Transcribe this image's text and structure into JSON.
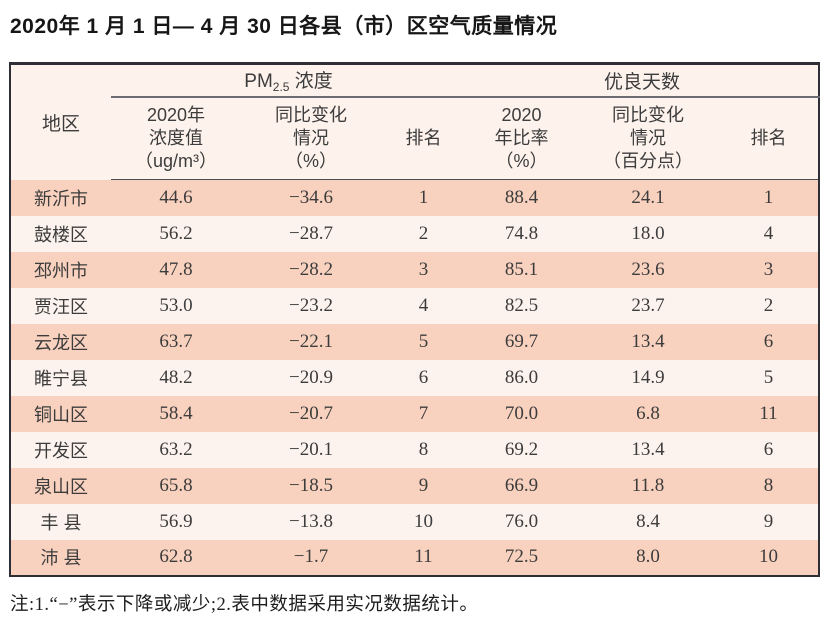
{
  "page": {
    "title": "2020年 1 月 1 日— 4 月 30 日各县（市）区空气质量情况",
    "footnote": "注:1.“−”表示下降或减少;2.表中数据采用实况数据统计。"
  },
  "colors": {
    "row_odd_bg": "#f9d2bf",
    "row_even_bg": "#fdf3ee",
    "header_bg": "#fdf2ec",
    "border_outer": "#2e2e36",
    "border_inner": "#4c4c54",
    "text": "#3c3c3c"
  },
  "table": {
    "header": {
      "region": "地区",
      "pm25_group_prefix": "PM",
      "pm25_group_sub": "2.5",
      "pm25_group_suffix": " 浓度",
      "good_days_group": "优良天数",
      "pm25_value": "2020年\n浓度值\n（ug/m³）",
      "pm25_change": "同比变化\n情况\n（%）",
      "pm25_rank": "排名",
      "good_rate": "2020\n年比率\n（%）",
      "good_change": "同比变化\n情况\n（百分点）",
      "good_rank": "排名"
    },
    "rows": [
      {
        "region": "新沂市",
        "pm25_value": "44.6",
        "pm25_change": "−34.6",
        "pm25_rank": "1",
        "good_rate": "88.4",
        "good_change": "24.1",
        "good_rank": "1"
      },
      {
        "region": "鼓楼区",
        "pm25_value": "56.2",
        "pm25_change": "−28.7",
        "pm25_rank": "2",
        "good_rate": "74.8",
        "good_change": "18.0",
        "good_rank": "4"
      },
      {
        "region": "邳州市",
        "pm25_value": "47.8",
        "pm25_change": "−28.2",
        "pm25_rank": "3",
        "good_rate": "85.1",
        "good_change": "23.6",
        "good_rank": "3"
      },
      {
        "region": "贾汪区",
        "pm25_value": "53.0",
        "pm25_change": "−23.2",
        "pm25_rank": "4",
        "good_rate": "82.5",
        "good_change": "23.7",
        "good_rank": "2"
      },
      {
        "region": "云龙区",
        "pm25_value": "63.7",
        "pm25_change": "−22.1",
        "pm25_rank": "5",
        "good_rate": "69.7",
        "good_change": "13.4",
        "good_rank": "6"
      },
      {
        "region": "睢宁县",
        "pm25_value": "48.2",
        "pm25_change": "−20.9",
        "pm25_rank": "6",
        "good_rate": "86.0",
        "good_change": "14.9",
        "good_rank": "5"
      },
      {
        "region": "铜山区",
        "pm25_value": "58.4",
        "pm25_change": "−20.7",
        "pm25_rank": "7",
        "good_rate": "70.0",
        "good_change": "6.8",
        "good_rank": "11"
      },
      {
        "region": "开发区",
        "pm25_value": "63.2",
        "pm25_change": "−20.1",
        "pm25_rank": "8",
        "good_rate": "69.2",
        "good_change": "13.4",
        "good_rank": "6"
      },
      {
        "region": "泉山区",
        "pm25_value": "65.8",
        "pm25_change": "−18.5",
        "pm25_rank": "9",
        "good_rate": "66.9",
        "good_change": "11.8",
        "good_rank": "8"
      },
      {
        "region": "丰 县",
        "pm25_value": "56.9",
        "pm25_change": "−13.8",
        "pm25_rank": "10",
        "good_rate": "76.0",
        "good_change": "8.4",
        "good_rank": "9"
      },
      {
        "region": "沛 县",
        "pm25_value": "62.8",
        "pm25_change": "−1.7",
        "pm25_rank": "11",
        "good_rate": "72.5",
        "good_change": "8.0",
        "good_rank": "10"
      }
    ]
  }
}
